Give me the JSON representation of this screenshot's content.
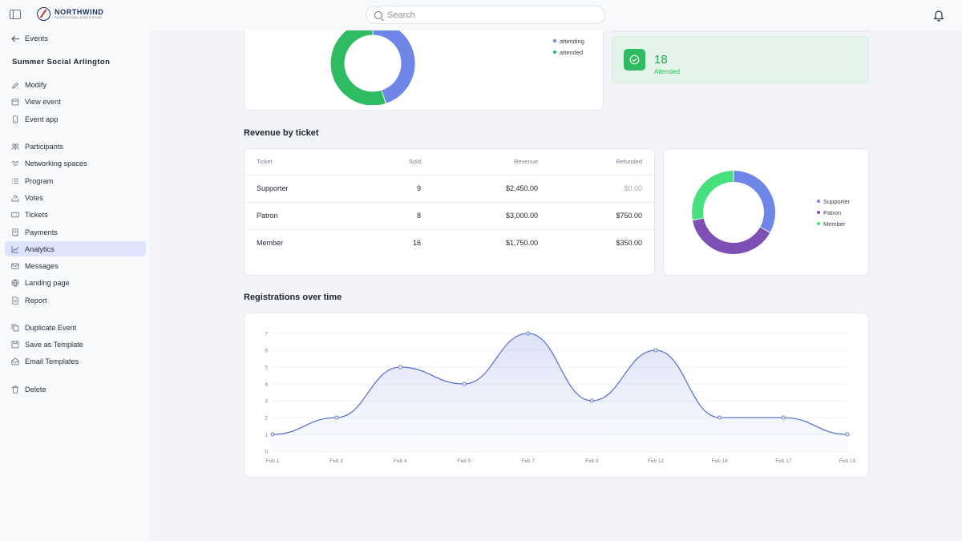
{
  "header": {
    "logo_name": "NORTHWIND",
    "logo_sub": "PROFESSIONAL ASSOCIATION",
    "search_placeholder": "Search"
  },
  "sidebar": {
    "back_label": "Events",
    "event_title": "Summer Social Arlington",
    "items": [
      {
        "label": "Modify",
        "icon": "pencil-icon"
      },
      {
        "label": "View event",
        "icon": "calendar-icon"
      },
      {
        "label": "Event app",
        "icon": "phone-icon"
      },
      {
        "label": "Participants",
        "icon": "people-icon"
      },
      {
        "label": "Networking spaces",
        "icon": "handshake-icon"
      },
      {
        "label": "Program",
        "icon": "list-icon"
      },
      {
        "label": "Votes",
        "icon": "vote-icon"
      },
      {
        "label": "Tickets",
        "icon": "ticket-icon"
      },
      {
        "label": "Payments",
        "icon": "receipt-icon"
      },
      {
        "label": "Analytics",
        "icon": "chart-icon",
        "active": true
      },
      {
        "label": "Messages",
        "icon": "mail-icon"
      },
      {
        "label": "Landing page",
        "icon": "globe-icon"
      },
      {
        "label": "Report",
        "icon": "file-icon"
      },
      {
        "label": "Duplicate Event",
        "icon": "copy-icon"
      },
      {
        "label": "Save as Template",
        "icon": "save-icon"
      },
      {
        "label": "Email Templates",
        "icon": "mail-open-icon"
      },
      {
        "label": "Delete",
        "icon": "trash-icon"
      }
    ]
  },
  "attendance": {
    "legend": [
      {
        "label": "attending",
        "color": "#6d86e8"
      },
      {
        "label": "attended",
        "color": "#2ebb61"
      }
    ],
    "stat_number": "18",
    "stat_label": "Attended"
  },
  "revenue": {
    "title": "Revenue by ticket",
    "columns": [
      "Ticket",
      "Sold",
      "Revenue",
      "Refunded"
    ],
    "rows": [
      {
        "ticket": "Supporter",
        "sold": "9",
        "revenue": "$2,450.00",
        "refunded": "$0.00"
      },
      {
        "ticket": "Patron",
        "sold": "8",
        "revenue": "$3,000.00",
        "refunded": "$750.00"
      },
      {
        "ticket": "Member",
        "sold": "16",
        "revenue": "$1,750.00",
        "refunded": "$350.00"
      }
    ],
    "legend": [
      {
        "label": "Supporter",
        "color": "#6d86e8"
      },
      {
        "label": "Patron",
        "color": "#7e4fb4"
      },
      {
        "label": "Member",
        "color": "#46e07d"
      }
    ]
  },
  "registrations": {
    "title": "Registrations over time"
  },
  "chart_data": [
    {
      "type": "pie",
      "title": "",
      "labels": [
        "attending",
        "attended"
      ],
      "values": [
        45,
        55
      ],
      "colors": [
        "#6d86e8",
        "#2ebb61"
      ]
    },
    {
      "type": "pie",
      "title": "",
      "labels": [
        "Supporter",
        "Patron",
        "Member"
      ],
      "values": [
        33,
        39,
        28
      ],
      "colors": [
        "#6d86e8",
        "#7e4fb4",
        "#46e07d"
      ]
    },
    {
      "type": "area",
      "title": "Registrations over time",
      "xlabel": "",
      "ylabel": "",
      "categories": [
        "Feb 1",
        "Feb 2",
        "Feb 4",
        "Feb 5",
        "Feb 7",
        "Feb 9",
        "Feb 12",
        "Feb 14",
        "Feb 17",
        "Feb 19"
      ],
      "values": [
        1,
        2,
        5,
        4,
        7,
        3,
        6,
        2,
        2,
        1
      ],
      "ylim": [
        0,
        7
      ],
      "yticks": [
        0,
        1,
        2,
        3,
        4,
        5,
        6,
        7
      ],
      "grid": true,
      "color": "#6276d1"
    }
  ]
}
